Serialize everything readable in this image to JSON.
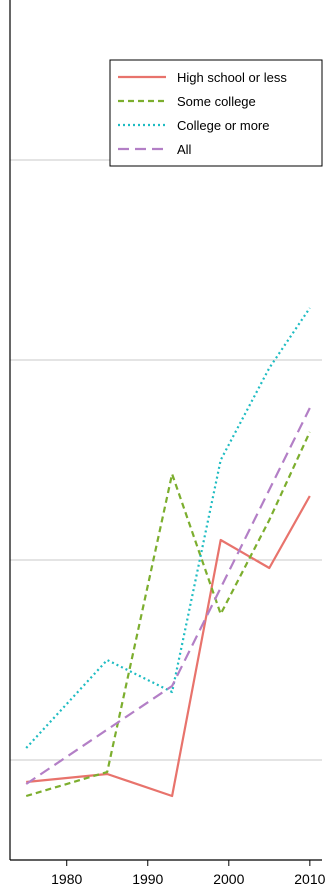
{
  "chart_data": {
    "type": "line",
    "title": "",
    "xlabel": "",
    "ylabel": "",
    "x_ticks": [
      1980,
      1990,
      2000,
      2010
    ],
    "xlim": [
      1973,
      2011.5
    ],
    "ylim": [
      0,
      4.3
    ],
    "y_gridlines": [
      0.5,
      1.5,
      2.5,
      3.5
    ],
    "grid": "horizontal only",
    "legend_position": "top-right",
    "series": [
      {
        "name": "High school or less",
        "color": "#E8736C",
        "dash": "solid",
        "x": [
          1975,
          1985,
          1993,
          1999,
          2005,
          2010
        ],
        "y": [
          0.39,
          0.43,
          0.32,
          1.6,
          1.46,
          1.82
        ]
      },
      {
        "name": "Some college",
        "color": "#7CAE2E",
        "dash": "dashed",
        "x": [
          1975,
          1985,
          1993,
          1999,
          2005,
          2010
        ],
        "y": [
          0.32,
          0.44,
          1.93,
          1.23,
          1.7,
          2.14
        ]
      },
      {
        "name": "College or more",
        "color": "#1EBCC2",
        "dash": "dotted",
        "x": [
          1975,
          1985,
          1993,
          1999,
          2005,
          2010
        ],
        "y": [
          0.56,
          1.0,
          0.84,
          2.0,
          2.46,
          2.76
        ]
      },
      {
        "name": "All",
        "color": "#B37FC6",
        "dash": "longdash",
        "x": [
          1975,
          1993,
          2010
        ],
        "y": [
          0.38,
          0.87,
          2.26
        ]
      }
    ]
  }
}
